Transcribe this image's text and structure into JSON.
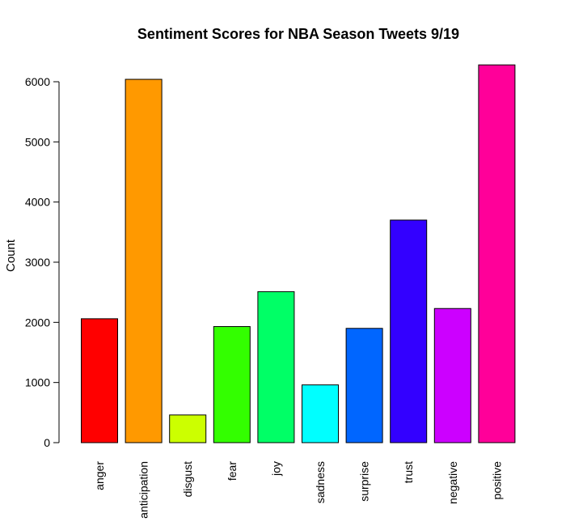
{
  "chart_data": {
    "type": "bar",
    "title": "Sentiment Scores for NBA Season Tweets 9/19",
    "xlabel": "",
    "ylabel": "Count",
    "ylim": [
      0,
      6000
    ],
    "yticks": [
      0,
      1000,
      2000,
      3000,
      4000,
      5000,
      6000
    ],
    "categories": [
      "anger",
      "anticipation",
      "disgust",
      "fear",
      "joy",
      "sadness",
      "surprise",
      "trust",
      "negative",
      "positive"
    ],
    "values": [
      2060,
      6040,
      460,
      1930,
      2510,
      960,
      1900,
      3700,
      2230,
      6280
    ],
    "colors": [
      "#FF0000",
      "#FF9900",
      "#CCFF00",
      "#33FF00",
      "#00FF66",
      "#00FFFF",
      "#0066FF",
      "#3300FF",
      "#CC00FF",
      "#FF0099"
    ],
    "grid": false,
    "legend": "none"
  }
}
